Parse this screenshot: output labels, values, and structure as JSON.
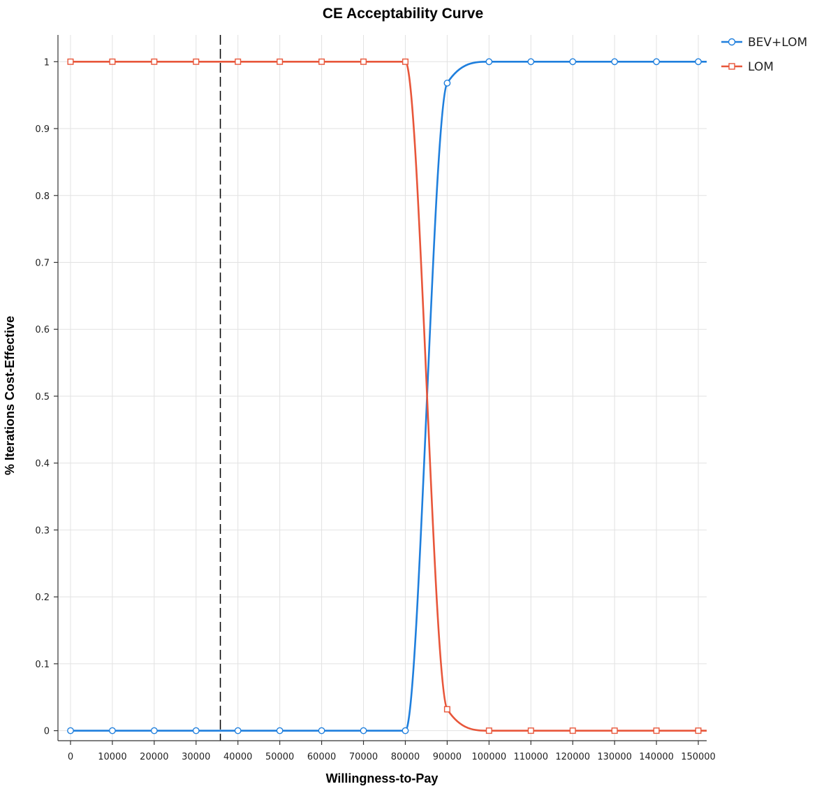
{
  "chart_data": {
    "type": "line",
    "title": "CE Acceptability Curve",
    "xlabel": "Willingness-to-Pay",
    "ylabel": "% Iterations Cost-Effective",
    "xlim": [
      -3000,
      152000
    ],
    "ylim": [
      -0.015,
      1.04
    ],
    "x_ticks": [
      0,
      10000,
      20000,
      30000,
      40000,
      50000,
      60000,
      70000,
      80000,
      90000,
      100000,
      110000,
      120000,
      130000,
      140000,
      150000
    ],
    "x_tick_labels": [
      "0",
      "10000",
      "20000",
      "30000",
      "40000",
      "50000",
      "60000",
      "70000",
      "80000",
      "90000",
      "100000",
      "110000",
      "120000",
      "130000",
      "140000",
      "150000"
    ],
    "y_ticks": [
      0,
      0.1,
      0.2,
      0.3,
      0.4,
      0.5,
      0.6,
      0.7,
      0.8,
      0.9,
      1
    ],
    "y_tick_labels": [
      "0",
      "0.1",
      "0.2",
      "0.3",
      "0.4",
      "0.5",
      "0.6",
      "0.7",
      "0.8",
      "0.9",
      "1"
    ],
    "grid": true,
    "legend_position": "top-right",
    "reference_line": {
      "x": 35800,
      "style": "dashed",
      "color": "#000000"
    },
    "x": [
      0,
      10000,
      20000,
      30000,
      40000,
      50000,
      60000,
      70000,
      80000,
      90000,
      100000,
      110000,
      120000,
      130000,
      140000,
      150000
    ],
    "series": [
      {
        "name": "BEV+LOM",
        "color": "#1f7fdd",
        "marker": "circle",
        "values": [
          0,
          0,
          0,
          0,
          0,
          0,
          0,
          0,
          0,
          0.968,
          1,
          1,
          1,
          1,
          1,
          1
        ]
      },
      {
        "name": "LOM",
        "color": "#e8563a",
        "marker": "square",
        "values": [
          1,
          1,
          1,
          1,
          1,
          1,
          1,
          1,
          1,
          0.032,
          0,
          0,
          0,
          0,
          0,
          0
        ]
      }
    ]
  }
}
